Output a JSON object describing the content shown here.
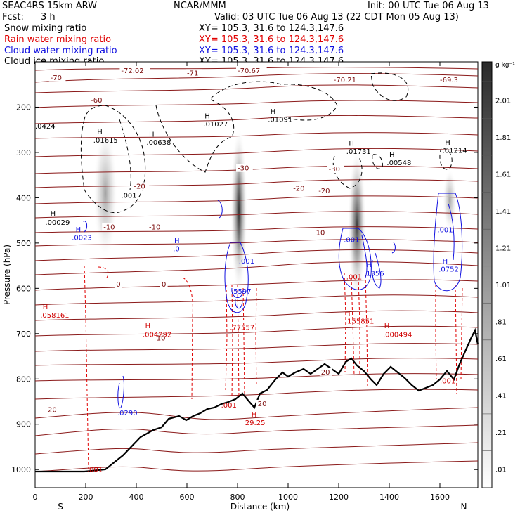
{
  "header": {
    "model": "SEAC4RS 15km ARW",
    "center": "NCAR/MMM",
    "init": "Init: 00 UTC Tue 06 Aug 13",
    "fcst_label": "Fcst:",
    "fcst_value": "3 h",
    "valid": "Valid: 03 UTC Tue 06 Aug 13 (22 CDT Mon 05 Aug 13)",
    "fields": [
      {
        "name": "Snow mixing ratio",
        "color": "#000000",
        "xy": "XY= 105.3, 31.6 to 124.3,147.6"
      },
      {
        "name": "Rain water mixing ratio",
        "color": "#e00000",
        "xy": "XY= 105.3, 31.6 to 124.3,147.6"
      },
      {
        "name": "Cloud water mixing ratio",
        "color": "#1010e0",
        "xy": "XY= 105.3, 31.6 to 124.3,147.6"
      },
      {
        "name": "Cloud ice mixing ratio",
        "color": "#000000",
        "xy": "XY= 105.3, 31.6 to 124.3,147.6"
      }
    ]
  },
  "chart_data": {
    "type": "heatmap",
    "xlabel": "Distance (km)",
    "ylabel": "Pressure (hPa)",
    "x_ticks": [
      0,
      200,
      400,
      600,
      800,
      1000,
      1200,
      1400,
      1600
    ],
    "xlim": [
      0,
      1750
    ],
    "y_ticks": [
      200,
      300,
      400,
      500,
      600,
      700,
      800,
      900,
      1000
    ],
    "ylim": [
      100,
      1040
    ],
    "x_end_labels": {
      "left": "S",
      "right": "N"
    },
    "colorbar": {
      "unit": "g kg⁻¹",
      "labels": [
        "2.01",
        "1.81",
        "1.61",
        "1.41",
        "1.21",
        "1.01",
        ".81",
        ".61",
        ".41",
        ".21",
        ".01"
      ]
    },
    "temperature_labels": [
      {
        "text": "-70",
        "x": 60,
        "p": 140,
        "c": "#7a0a0a"
      },
      {
        "text": "-72.02",
        "x": 340,
        "p": 125,
        "c": "#7a0a0a"
      },
      {
        "text": "-71",
        "x": 600,
        "p": 130,
        "c": "#7a0a0a"
      },
      {
        "text": "-70.67",
        "x": 800,
        "p": 125,
        "c": "#7a0a0a"
      },
      {
        "text": "-70.21",
        "x": 1180,
        "p": 145,
        "c": "#7a0a0a"
      },
      {
        "text": "-69.3",
        "x": 1600,
        "p": 145,
        "c": "#7a0a0a"
      },
      {
        "text": "-60",
        "x": 220,
        "p": 190,
        "c": "#7a0a0a"
      },
      {
        "text": "-30",
        "x": 800,
        "p": 340,
        "c": "#7a0a0a"
      },
      {
        "text": "-30",
        "x": 1160,
        "p": 342,
        "c": "#7a0a0a"
      },
      {
        "text": "-20",
        "x": 390,
        "p": 380,
        "c": "#7a0a0a"
      },
      {
        "text": "-20",
        "x": 1020,
        "p": 385,
        "c": "#7a0a0a"
      },
      {
        "text": "-20",
        "x": 1120,
        "p": 390,
        "c": "#7a0a0a"
      },
      {
        "text": "-10",
        "x": 270,
        "p": 470,
        "c": "#7a0a0a"
      },
      {
        "text": "-10",
        "x": 450,
        "p": 470,
        "c": "#7a0a0a"
      },
      {
        "text": "-10",
        "x": 1100,
        "p": 482,
        "c": "#7a0a0a"
      },
      {
        "text": "0",
        "x": 320,
        "p": 596,
        "c": "#7a0a0a"
      },
      {
        "text": "0",
        "x": 500,
        "p": 596,
        "c": "#7a0a0a"
      },
      {
        "text": "10",
        "x": 480,
        "p": 715,
        "c": "#7a0a0a"
      },
      {
        "text": "20",
        "x": 50,
        "p": 873,
        "c": "#7a0a0a"
      },
      {
        "text": "20",
        "x": 1130,
        "p": 790,
        "c": "#7a0a0a"
      },
      {
        "text": "20",
        "x": 880,
        "p": 860,
        "c": "#7a0a0a"
      }
    ],
    "extrema_labels": [
      {
        "text": "H",
        "x": 60,
        "p": 440,
        "c": "#000000"
      },
      {
        "text": ".00029",
        "x": 40,
        "p": 460,
        "c": "#000000"
      },
      {
        "text": "H",
        "x": 245,
        "p": 260,
        "c": "#000000"
      },
      {
        "text": ".01615",
        "x": 230,
        "p": 278,
        "c": "#000000"
      },
      {
        "text": ".001",
        "x": 340,
        "p": 400,
        "c": "#000000"
      },
      {
        "text": "H",
        "x": 450,
        "p": 265,
        "c": "#000000"
      },
      {
        "text": ".00638",
        "x": 440,
        "p": 283,
        "c": "#000000"
      },
      {
        "text": "H",
        "x": 670,
        "p": 225,
        "c": "#000000"
      },
      {
        "text": ".01027",
        "x": 665,
        "p": 243,
        "c": "#000000"
      },
      {
        "text": "H",
        "x": 930,
        "p": 215,
        "c": "#000000"
      },
      {
        "text": ".01091",
        "x": 920,
        "p": 233,
        "c": "#000000"
      },
      {
        "text": "H",
        "x": 1240,
        "p": 285,
        "c": "#000000"
      },
      {
        "text": ".01731",
        "x": 1230,
        "p": 303,
        "c": "#000000"
      },
      {
        "text": "H",
        "x": 1400,
        "p": 310,
        "c": "#000000"
      },
      {
        "text": ".00548",
        "x": 1390,
        "p": 328,
        "c": "#000000"
      },
      {
        "text": "H",
        "x": 1620,
        "p": 283,
        "c": "#000000"
      },
      {
        "text": ".01214",
        "x": 1610,
        "p": 301,
        "c": "#000000"
      },
      {
        "text": ".0424",
        "x": 0,
        "p": 247,
        "c": "#000000"
      },
      {
        "text": "H",
        "x": 160,
        "p": 475,
        "c": "#1010e0"
      },
      {
        "text": ".0023",
        "x": 145,
        "p": 493,
        "c": "#1010e0"
      },
      {
        "text": "H",
        "x": 550,
        "p": 500,
        "c": "#1010e0"
      },
      {
        "text": ".0",
        "x": 545,
        "p": 518,
        "c": "#1010e0"
      },
      {
        "text": ".001",
        "x": 805,
        "p": 545,
        "c": "#1010e0"
      },
      {
        "text": ".5597",
        "x": 775,
        "p": 612,
        "c": "#1010e0"
      },
      {
        "text": ".001",
        "x": 1220,
        "p": 498,
        "c": "#1010e0"
      },
      {
        "text": "H",
        "x": 1310,
        "p": 553,
        "c": "#1010e0"
      },
      {
        "text": ".1356",
        "x": 1300,
        "p": 572,
        "c": "#1010e0"
      },
      {
        "text": ".001",
        "x": 1590,
        "p": 476,
        "c": "#1010e0"
      },
      {
        "text": "H",
        "x": 1610,
        "p": 545,
        "c": "#1010e0"
      },
      {
        "text": ".0752",
        "x": 1595,
        "p": 563,
        "c": "#1010e0"
      },
      {
        "text": ".0290",
        "x": 325,
        "p": 880,
        "c": "#1010e0"
      },
      {
        "text": "H",
        "x": 30,
        "p": 646,
        "c": "#d00000"
      },
      {
        "text": ".058161",
        "x": 20,
        "p": 665,
        "c": "#d00000"
      },
      {
        "text": "H",
        "x": 435,
        "p": 688,
        "c": "#d00000"
      },
      {
        "text": ".004292",
        "x": 425,
        "p": 707,
        "c": "#d00000"
      },
      {
        "text": ".77557",
        "x": 770,
        "p": 692,
        "c": "#d00000"
      },
      {
        "text": ".001",
        "x": 1230,
        "p": 580,
        "c": "#d00000"
      },
      {
        "text": "H",
        "x": 1225,
        "p": 660,
        "c": "#d00000"
      },
      {
        "text": ".155851",
        "x": 1225,
        "p": 678,
        "c": "#d00000"
      },
      {
        "text": "H",
        "x": 1380,
        "p": 688,
        "c": "#d00000"
      },
      {
        "text": ".000494",
        "x": 1375,
        "p": 707,
        "c": "#d00000"
      },
      {
        "text": ".001",
        "x": 205,
        "p": 1005,
        "c": "#d00000"
      },
      {
        "text": ".001",
        "x": 735,
        "p": 863,
        "c": "#d00000"
      },
      {
        "text": ".001",
        "x": 1600,
        "p": 810,
        "c": "#d00000"
      },
      {
        "text": "H",
        "x": 855,
        "p": 883,
        "c": "#d00000"
      },
      {
        "text": "29.25",
        "x": 830,
        "p": 902,
        "c": "#d00000"
      }
    ]
  }
}
